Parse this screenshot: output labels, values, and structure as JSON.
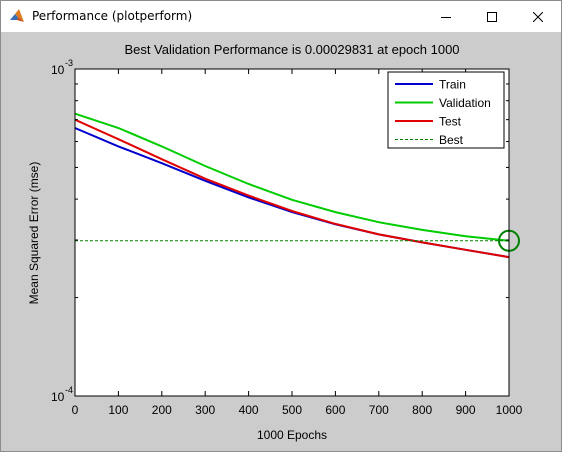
{
  "window": {
    "title": "Performance (plotperform)",
    "minimize_icon": "minimize-icon",
    "maximize_icon": "maximize-icon",
    "close_icon": "close-icon",
    "app_icon": "matlab-icon"
  },
  "chart_data": {
    "type": "line",
    "title": "Best Validation Performance is 0.00029831 at epoch 1000",
    "xlabel": "1000 Epochs",
    "ylabel": "Mean Squared Error  (mse)",
    "xlim": [
      0,
      1000
    ],
    "ylim": [
      0.0001,
      0.001
    ],
    "yscale": "log",
    "grid": false,
    "legend_placement": "top-right",
    "x_ticks": [
      0,
      100,
      200,
      300,
      400,
      500,
      600,
      700,
      800,
      900,
      1000
    ],
    "y_tick_labels": [
      {
        "value": 0.001,
        "base": "10",
        "exp": "-3"
      },
      {
        "value": 0.0001,
        "base": "10",
        "exp": "-4"
      }
    ],
    "series": [
      {
        "name": "Train",
        "color": "#0000cc",
        "style": "solid",
        "x": [
          0,
          100,
          200,
          300,
          400,
          500,
          600,
          700,
          800,
          900,
          1000
        ],
        "y": [
          0.00066,
          0.00058,
          0.000515,
          0.000455,
          0.000405,
          0.000365,
          0.000335,
          0.000312,
          0.000295,
          0.00028,
          0.000266
        ]
      },
      {
        "name": "Validation",
        "color": "#00cc00",
        "style": "solid",
        "x": [
          0,
          100,
          200,
          300,
          400,
          500,
          600,
          700,
          800,
          900,
          1000
        ],
        "y": [
          0.00073,
          0.00066,
          0.00058,
          0.000505,
          0.000445,
          0.000398,
          0.000365,
          0.00034,
          0.000322,
          0.000308,
          0.0002983
        ]
      },
      {
        "name": "Test",
        "color": "#e00000",
        "style": "solid",
        "x": [
          0,
          100,
          200,
          300,
          400,
          500,
          600,
          700,
          800,
          900,
          1000
        ],
        "y": [
          0.0007,
          0.00061,
          0.00053,
          0.000462,
          0.00041,
          0.000368,
          0.000336,
          0.000312,
          0.000295,
          0.00028,
          0.000266
        ]
      },
      {
        "name": "Best",
        "color": "#008000",
        "style": "dashed",
        "x": [
          0,
          1000
        ],
        "y": [
          0.0002983,
          0.0002983
        ]
      }
    ],
    "best_point": {
      "x": 1000,
      "y": 0.0002983,
      "color": "#008000"
    }
  }
}
